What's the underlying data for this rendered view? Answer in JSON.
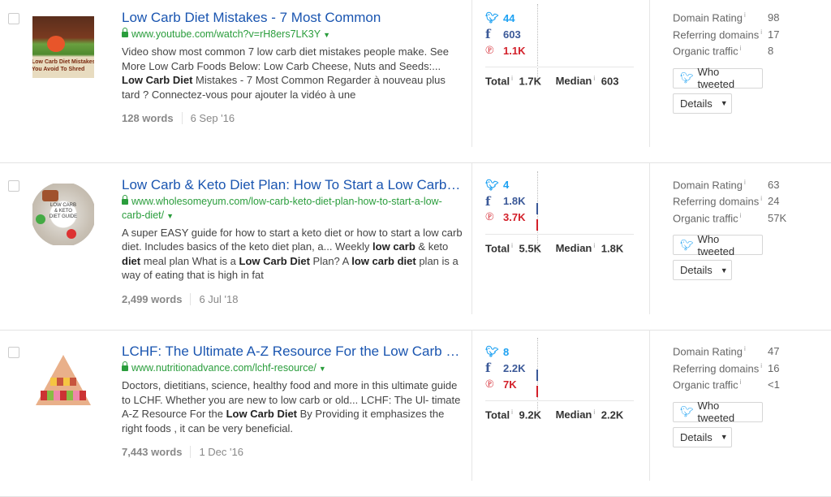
{
  "colors": {
    "title": "#1a55b0",
    "url": "#2a9d3c",
    "twitter": "#1da1f2",
    "facebook": "#3b5998",
    "pinterest": "#d3202a"
  },
  "labels": {
    "total": "Total",
    "median": "Median",
    "info": "i",
    "domain_rating": "Domain Rating",
    "referring_domains": "Referring domains",
    "organic_traffic": "Organic traffic",
    "who_tweeted": "Who tweeted",
    "details": "Details",
    "details_caret": "▼",
    "url_caret": "▼"
  },
  "rows": [
    {
      "title": "Low Carb Diet Mistakes - 7 Most Common",
      "url": "www.youtube.com/watch?v=rH8ers7LK3Y",
      "thumb_text": "Low Carb Diet Mistakes You Avoid To Shred Those Po",
      "description": [
        {
          "t": "Video show most common 7 low carb diet mistakes people make. See More Low Carb Foods Below: Low Carb Cheese, Nuts and Seeds:... "
        },
        {
          "t": "Low Carb Diet",
          "b": true
        },
        {
          "t": " Mistakes - 7 Most Common Regarder à nouveau plus tard ? Connectez-vous pour ajouter la vidéo à une"
        }
      ],
      "words": "128 words",
      "date": "6 Sep '16",
      "twitter": "44",
      "facebook": "603",
      "pinterest": "1.1K",
      "total": "1.7K",
      "median": "603",
      "domain_rating": "98",
      "referring_domains": "17",
      "organic_traffic": "8"
    },
    {
      "title": "Low Carb & Keto Diet Plan: How To Start a Low Carb Diet",
      "url": "www.wholesomeyum.com/low-carb-keto-diet-plan-how-to-start-a-low-carb-diet/",
      "thumb_text": "LOW CARB & KETO DIET GUIDE",
      "description": [
        {
          "t": "A super EASY guide for how to start a keto diet or how to start a low carb diet. Includes basics of the keto diet plan, a... Weekly "
        },
        {
          "t": "low carb",
          "b": true
        },
        {
          "t": " & keto "
        },
        {
          "t": "diet",
          "b": true
        },
        {
          "t": " meal plan What is a "
        },
        {
          "t": "Low Carb Diet",
          "b": true
        },
        {
          "t": " Plan? A "
        },
        {
          "t": "low carb diet",
          "b": true
        },
        {
          "t": " plan is a way of eating that is high in fat"
        }
      ],
      "words": "2,499 words",
      "date": "6 Jul '18",
      "twitter": "4",
      "facebook": "1.8K",
      "pinterest": "3.7K",
      "total": "5.5K",
      "median": "1.8K",
      "domain_rating": "63",
      "referring_domains": "24",
      "organic_traffic": "57K"
    },
    {
      "title": "LCHF: The Ultimate A-Z Resource For the Low Carb High Fat Diet",
      "url": "www.nutritionadvance.com/lchf-resource/",
      "thumb_text": "",
      "description": [
        {
          "t": "Doctors, dietitians, science, healthy food and more in this ultimate guide to LCHF. Whether you are new to low carb or old... LCHF: The Ul- timate A-Z Resource For the "
        },
        {
          "t": "Low Carb Diet",
          "b": true
        },
        {
          "t": " By Providing it emphasizes the right foods , it can be very beneficial."
        }
      ],
      "words": "7,443 words",
      "date": "1 Dec '16",
      "twitter": "8",
      "facebook": "2.2K",
      "pinterest": "7K",
      "total": "9.2K",
      "median": "2.2K",
      "domain_rating": "47",
      "referring_domains": "16",
      "organic_traffic": "<1"
    }
  ]
}
